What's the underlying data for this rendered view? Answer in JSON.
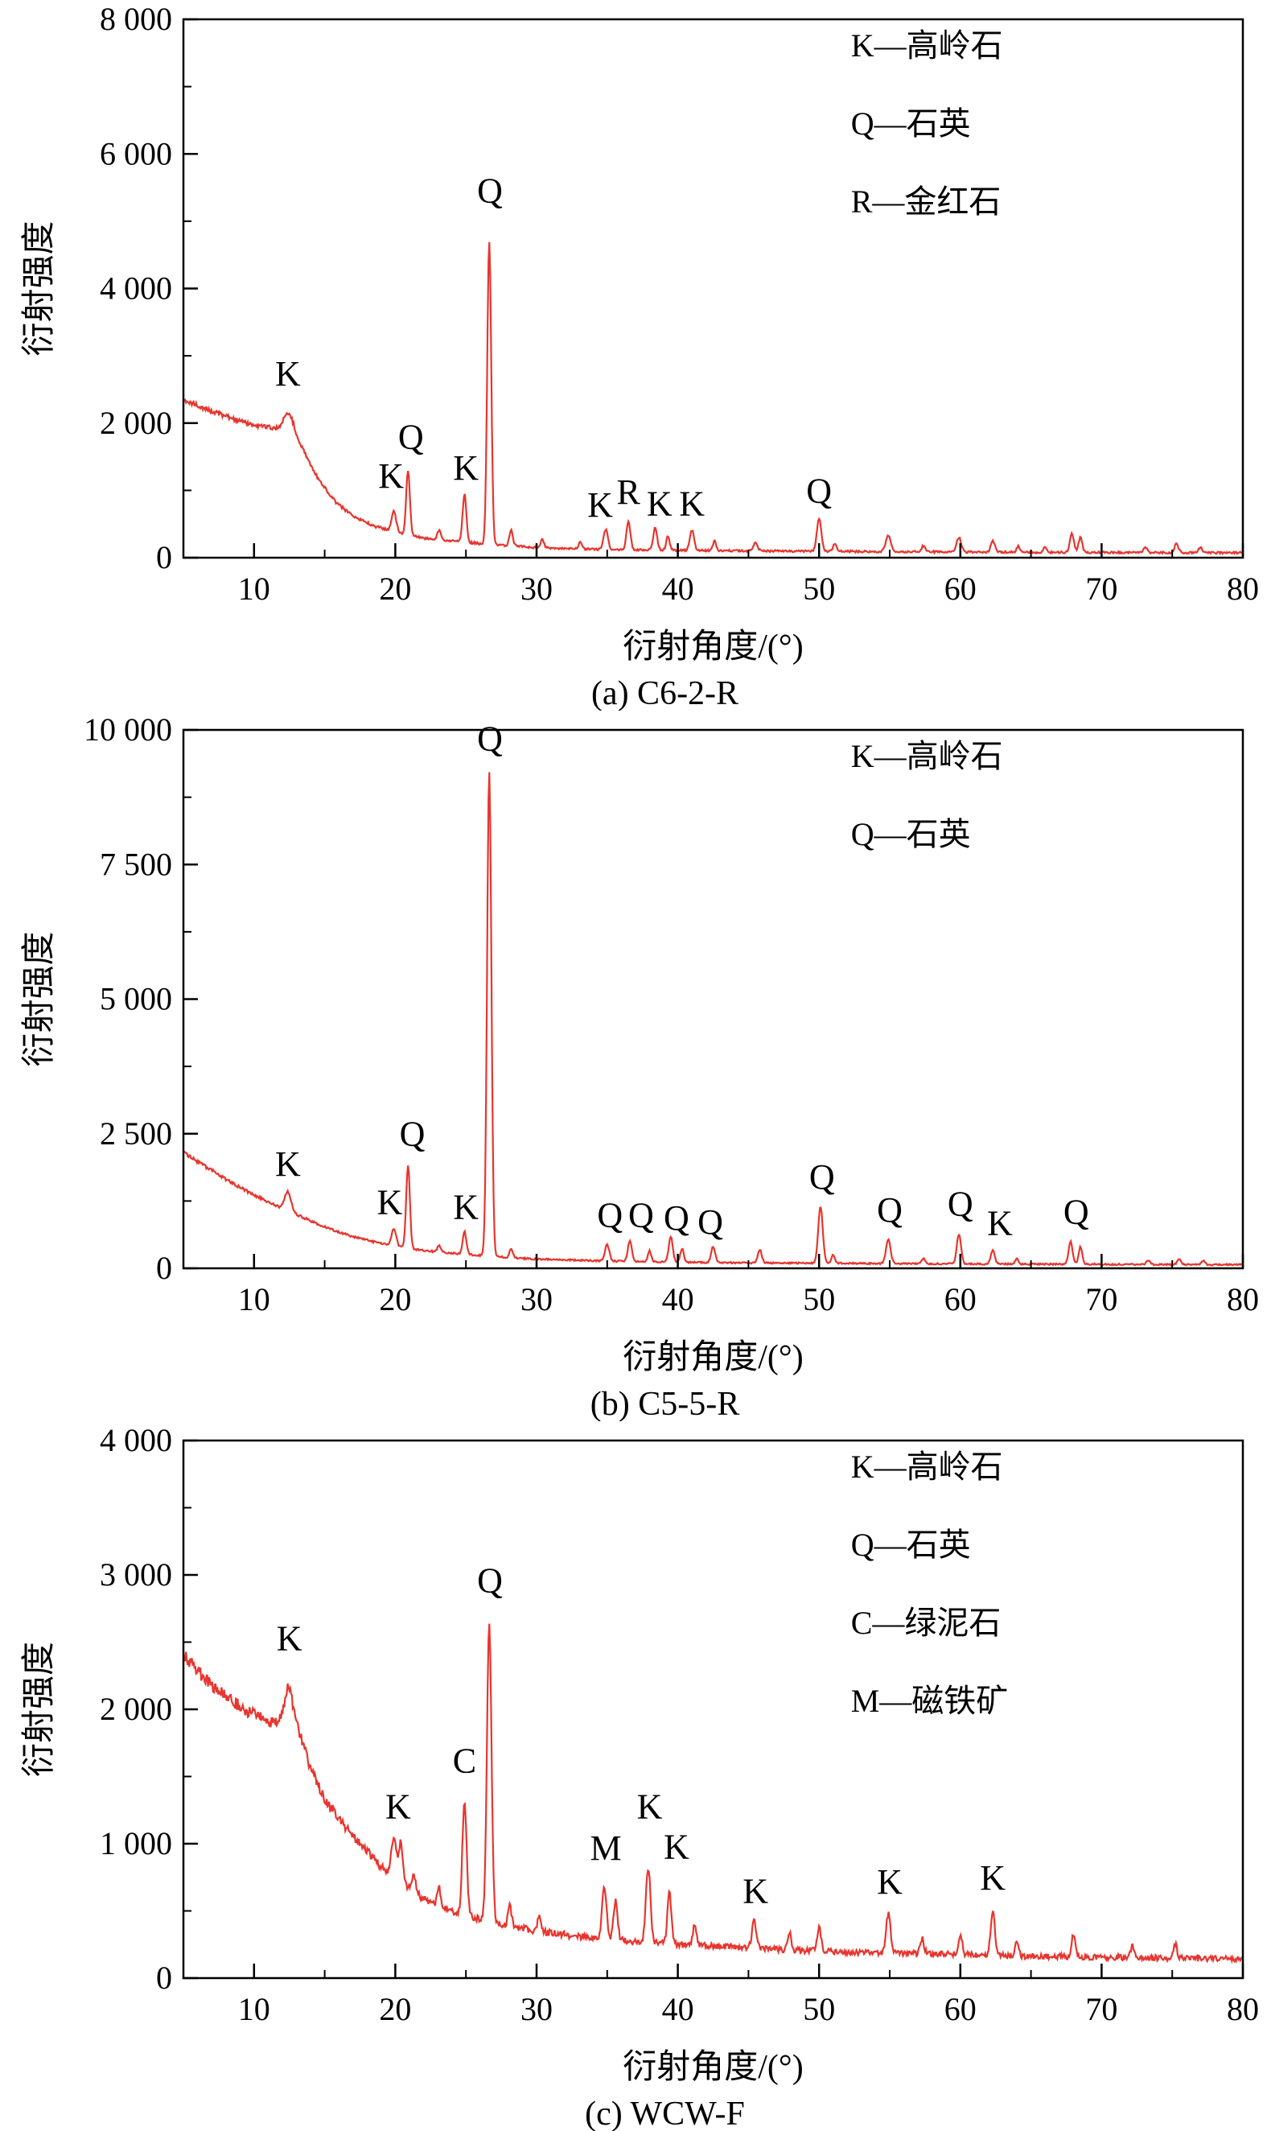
{
  "page": {
    "background": "#ffffff",
    "axis_color": "#000000",
    "text_color": "#000000",
    "series_color": "#e8352e"
  },
  "chart_data": [
    {
      "type": "line",
      "caption": "(a) C6-2-R",
      "xlabel": "衍射角度/(°)",
      "ylabel": "衍射强度",
      "xlim": [
        5,
        80
      ],
      "ylim": [
        0,
        8000
      ],
      "xticks": [
        10,
        20,
        30,
        40,
        50,
        60,
        70,
        80
      ],
      "x_minor_step": 5,
      "yticks": [
        0,
        2000,
        4000,
        6000,
        8000
      ],
      "ytick_labels": [
        "0",
        "2 000",
        "4 000",
        "6 000",
        "8 000"
      ],
      "y_minor_step": 1000,
      "grid": false,
      "legend": [
        "K—高岭石",
        "Q—石英",
        "R—金红石"
      ],
      "legend_position": "top-right",
      "series_color": "#e8352e",
      "noise": 26,
      "baseline": [
        [
          5,
          2350
        ],
        [
          7,
          2180
        ],
        [
          9,
          2030
        ],
        [
          10.5,
          1950
        ],
        [
          11.8,
          1920
        ],
        [
          12.8,
          1880
        ],
        [
          13.6,
          1550
        ],
        [
          14.6,
          1150
        ],
        [
          15.8,
          820
        ],
        [
          17,
          620
        ],
        [
          18.5,
          470
        ],
        [
          20,
          380
        ],
        [
          22,
          290
        ],
        [
          24,
          250
        ],
        [
          26,
          210
        ],
        [
          28,
          180
        ],
        [
          30,
          150
        ],
        [
          33,
          130
        ],
        [
          36,
          120
        ],
        [
          40,
          110
        ],
        [
          45,
          100
        ],
        [
          50,
          95
        ],
        [
          55,
          90
        ],
        [
          60,
          85
        ],
        [
          65,
          80
        ],
        [
          70,
          78
        ],
        [
          75,
          75
        ],
        [
          80,
          72
        ]
      ],
      "peaks": [
        [
          12.4,
          260,
          0.3
        ],
        [
          19.9,
          300,
          0.16
        ],
        [
          20.9,
          950,
          0.13
        ],
        [
          23.1,
          140,
          0.12
        ],
        [
          24.9,
          720,
          0.13
        ],
        [
          26.65,
          4500,
          0.14
        ],
        [
          28.2,
          230,
          0.12
        ],
        [
          30.4,
          120,
          0.12
        ],
        [
          33.1,
          100,
          0.12
        ],
        [
          34.9,
          300,
          0.15
        ],
        [
          36.5,
          420,
          0.14
        ],
        [
          38.4,
          330,
          0.14
        ],
        [
          39.3,
          200,
          0.12
        ],
        [
          41.0,
          300,
          0.15
        ],
        [
          42.6,
          140,
          0.12
        ],
        [
          45.5,
          140,
          0.14
        ],
        [
          50.0,
          480,
          0.16
        ],
        [
          51.1,
          120,
          0.12
        ],
        [
          54.9,
          240,
          0.18
        ],
        [
          57.4,
          90,
          0.14
        ],
        [
          59.9,
          220,
          0.16
        ],
        [
          62.3,
          170,
          0.14
        ],
        [
          64.1,
          90,
          0.12
        ],
        [
          66.0,
          80,
          0.12
        ],
        [
          67.9,
          280,
          0.14
        ],
        [
          68.5,
          220,
          0.13
        ],
        [
          73.1,
          80,
          0.12
        ],
        [
          75.3,
          130,
          0.14
        ],
        [
          77.0,
          80,
          0.12
        ]
      ],
      "peak_labels": [
        {
          "text": "K",
          "x": 12.4,
          "y": 2560
        },
        {
          "text": "K",
          "x": 19.7,
          "y": 1040
        },
        {
          "text": "Q",
          "x": 21.1,
          "y": 1620
        },
        {
          "text": "K",
          "x": 25.0,
          "y": 1160
        },
        {
          "text": "Q",
          "x": 26.7,
          "y": 5280
        },
        {
          "text": "K",
          "x": 34.5,
          "y": 610
        },
        {
          "text": "R",
          "x": 36.5,
          "y": 800
        },
        {
          "text": "K",
          "x": 38.7,
          "y": 630
        },
        {
          "text": "K",
          "x": 41.0,
          "y": 630
        },
        {
          "text": "Q",
          "x": 50.0,
          "y": 820
        }
      ]
    },
    {
      "type": "line",
      "caption": "(b) C5-5-R",
      "xlabel": "衍射角度/(°)",
      "ylabel": "衍射强度",
      "xlim": [
        5,
        80
      ],
      "ylim": [
        0,
        10000
      ],
      "xticks": [
        10,
        20,
        30,
        40,
        50,
        60,
        70,
        80
      ],
      "x_minor_step": 5,
      "yticks": [
        0,
        2500,
        5000,
        7500,
        10000
      ],
      "ytick_labels": [
        "0",
        "2 500",
        "5 000",
        "7 500",
        "10 000"
      ],
      "y_minor_step": 1250,
      "grid": false,
      "legend": [
        "K—高岭石",
        "Q—石英"
      ],
      "legend_position": "top-right",
      "series_color": "#e8352e",
      "noise": 24,
      "baseline": [
        [
          5,
          2150
        ],
        [
          6.5,
          1900
        ],
        [
          8,
          1650
        ],
        [
          9.5,
          1430
        ],
        [
          11,
          1230
        ],
        [
          12.5,
          1060
        ],
        [
          14,
          880
        ],
        [
          15.5,
          720
        ],
        [
          17,
          590
        ],
        [
          18.5,
          490
        ],
        [
          20,
          410
        ],
        [
          22,
          330
        ],
        [
          24,
          280
        ],
        [
          26,
          240
        ],
        [
          28,
          200
        ],
        [
          30,
          170
        ],
        [
          33,
          150
        ],
        [
          36,
          130
        ],
        [
          40,
          115
        ],
        [
          45,
          100
        ],
        [
          50,
          95
        ],
        [
          55,
          88
        ],
        [
          60,
          82
        ],
        [
          65,
          78
        ],
        [
          70,
          74
        ],
        [
          75,
          70
        ],
        [
          80,
          68
        ]
      ],
      "peaks": [
        [
          12.4,
          350,
          0.22
        ],
        [
          19.9,
          330,
          0.16
        ],
        [
          20.9,
          1550,
          0.13
        ],
        [
          23.1,
          120,
          0.12
        ],
        [
          24.9,
          420,
          0.13
        ],
        [
          26.65,
          9000,
          0.15
        ],
        [
          28.2,
          160,
          0.12
        ],
        [
          35.0,
          300,
          0.15
        ],
        [
          36.6,
          380,
          0.14
        ],
        [
          38.0,
          200,
          0.12
        ],
        [
          39.5,
          480,
          0.14
        ],
        [
          40.3,
          250,
          0.12
        ],
        [
          42.5,
          300,
          0.14
        ],
        [
          45.8,
          250,
          0.14
        ],
        [
          50.1,
          1050,
          0.16
        ],
        [
          51.0,
          150,
          0.12
        ],
        [
          54.9,
          450,
          0.16
        ],
        [
          57.4,
          100,
          0.12
        ],
        [
          59.9,
          550,
          0.15
        ],
        [
          62.3,
          250,
          0.14
        ],
        [
          64.0,
          100,
          0.12
        ],
        [
          67.8,
          420,
          0.14
        ],
        [
          68.5,
          320,
          0.13
        ],
        [
          73.3,
          80,
          0.12
        ],
        [
          75.5,
          110,
          0.13
        ],
        [
          77.2,
          70,
          0.12
        ]
      ],
      "peak_labels": [
        {
          "text": "Q",
          "x": 26.7,
          "y": 9620
        },
        {
          "text": "K",
          "x": 12.4,
          "y": 1720
        },
        {
          "text": "K",
          "x": 19.6,
          "y": 1010
        },
        {
          "text": "Q",
          "x": 21.2,
          "y": 2280
        },
        {
          "text": "K",
          "x": 25.0,
          "y": 920
        },
        {
          "text": "Q",
          "x": 35.2,
          "y": 770
        },
        {
          "text": "Q",
          "x": 37.4,
          "y": 770
        },
        {
          "text": "Q",
          "x": 39.9,
          "y": 720
        },
        {
          "text": "Q",
          "x": 42.3,
          "y": 640
        },
        {
          "text": "Q",
          "x": 50.2,
          "y": 1480
        },
        {
          "text": "Q",
          "x": 55.0,
          "y": 870
        },
        {
          "text": "Q",
          "x": 60.0,
          "y": 980
        },
        {
          "text": "K",
          "x": 62.8,
          "y": 620
        },
        {
          "text": "Q",
          "x": 68.2,
          "y": 830
        }
      ]
    },
    {
      "type": "line",
      "caption": "(c) WCW-F",
      "xlabel": "衍射角度/(°)",
      "ylabel": "衍射强度",
      "xlim": [
        5,
        80
      ],
      "ylim": [
        0,
        4000
      ],
      "xticks": [
        10,
        20,
        30,
        40,
        50,
        60,
        70,
        80
      ],
      "x_minor_step": 5,
      "yticks": [
        0,
        1000,
        2000,
        3000,
        4000
      ],
      "ytick_labels": [
        "0",
        "1 000",
        "2 000",
        "3 000",
        "4 000"
      ],
      "y_minor_step": 500,
      "grid": false,
      "legend": [
        "K—高岭石",
        "Q—石英",
        "C—绿泥石",
        "M—磁铁矿"
      ],
      "legend_position": "top-right",
      "series_color": "#e8352e",
      "noise": 36,
      "baseline": [
        [
          5,
          2400
        ],
        [
          6.5,
          2230
        ],
        [
          8,
          2090
        ],
        [
          9.5,
          1990
        ],
        [
          11,
          1910
        ],
        [
          12.2,
          1880
        ],
        [
          13.2,
          1830
        ],
        [
          14,
          1560
        ],
        [
          15,
          1330
        ],
        [
          16,
          1180
        ],
        [
          17.5,
          1000
        ],
        [
          19,
          830
        ],
        [
          20.5,
          700
        ],
        [
          22,
          590
        ],
        [
          24,
          500
        ],
        [
          26,
          440
        ],
        [
          28,
          390
        ],
        [
          30,
          350
        ],
        [
          33,
          310
        ],
        [
          36,
          280
        ],
        [
          40,
          250
        ],
        [
          44,
          230
        ],
        [
          48,
          210
        ],
        [
          52,
          195
        ],
        [
          58,
          180
        ],
        [
          64,
          165
        ],
        [
          70,
          155
        ],
        [
          75,
          148
        ],
        [
          80,
          142
        ]
      ],
      "peaks": [
        [
          12.45,
          300,
          0.3
        ],
        [
          19.9,
          280,
          0.18
        ],
        [
          20.4,
          300,
          0.15
        ],
        [
          21.3,
          150,
          0.12
        ],
        [
          23.1,
          130,
          0.12
        ],
        [
          24.9,
          850,
          0.15
        ],
        [
          26.65,
          2200,
          0.16
        ],
        [
          28.1,
          160,
          0.12
        ],
        [
          30.2,
          120,
          0.12
        ],
        [
          34.8,
          380,
          0.16
        ],
        [
          35.6,
          300,
          0.14
        ],
        [
          37.9,
          560,
          0.16
        ],
        [
          39.4,
          380,
          0.14
        ],
        [
          41.2,
          160,
          0.13
        ],
        [
          45.4,
          200,
          0.15
        ],
        [
          47.9,
          130,
          0.13
        ],
        [
          50.0,
          170,
          0.14
        ],
        [
          54.9,
          290,
          0.16
        ],
        [
          57.3,
          110,
          0.13
        ],
        [
          60.0,
          140,
          0.13
        ],
        [
          62.3,
          330,
          0.15
        ],
        [
          64.0,
          110,
          0.12
        ],
        [
          68.0,
          160,
          0.14
        ],
        [
          72.2,
          90,
          0.12
        ],
        [
          75.2,
          110,
          0.13
        ]
      ],
      "peak_labels": [
        {
          "text": "K",
          "x": 12.5,
          "y": 2440
        },
        {
          "text": "K",
          "x": 20.2,
          "y": 1190
        },
        {
          "text": "C",
          "x": 24.9,
          "y": 1530
        },
        {
          "text": "Q",
          "x": 26.7,
          "y": 2870
        },
        {
          "text": "M",
          "x": 34.9,
          "y": 880
        },
        {
          "text": "K",
          "x": 38.0,
          "y": 1190
        },
        {
          "text": "K",
          "x": 39.9,
          "y": 890
        },
        {
          "text": "K",
          "x": 45.5,
          "y": 560
        },
        {
          "text": "K",
          "x": 55.0,
          "y": 630
        },
        {
          "text": "K",
          "x": 62.3,
          "y": 660
        }
      ]
    }
  ]
}
